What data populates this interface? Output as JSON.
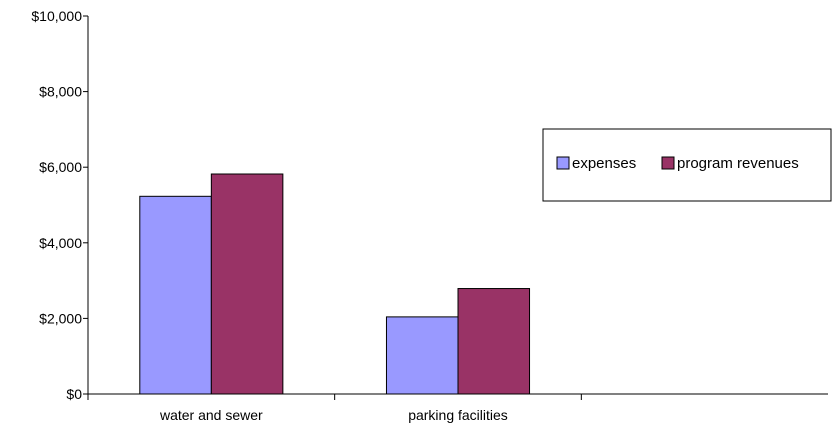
{
  "chart_data": {
    "type": "bar",
    "categories": [
      "water and sewer",
      "parking facilities",
      ""
    ],
    "series": [
      {
        "name": "expenses",
        "values": [
          5230,
          2040,
          null
        ]
      },
      {
        "name": "program revenues",
        "values": [
          5820,
          2790,
          null
        ]
      }
    ],
    "ylim": [
      0,
      10000
    ],
    "y_ticks": [
      0,
      2000,
      4000,
      6000,
      8000,
      10000
    ],
    "y_tick_labels": [
      "$0",
      "$2,000",
      "$4,000",
      "$6,000",
      "$8,000",
      "$10,000"
    ],
    "colors": {
      "expenses": "#9999ff",
      "program revenues": "#993366"
    },
    "grid": false,
    "legend": "right"
  }
}
